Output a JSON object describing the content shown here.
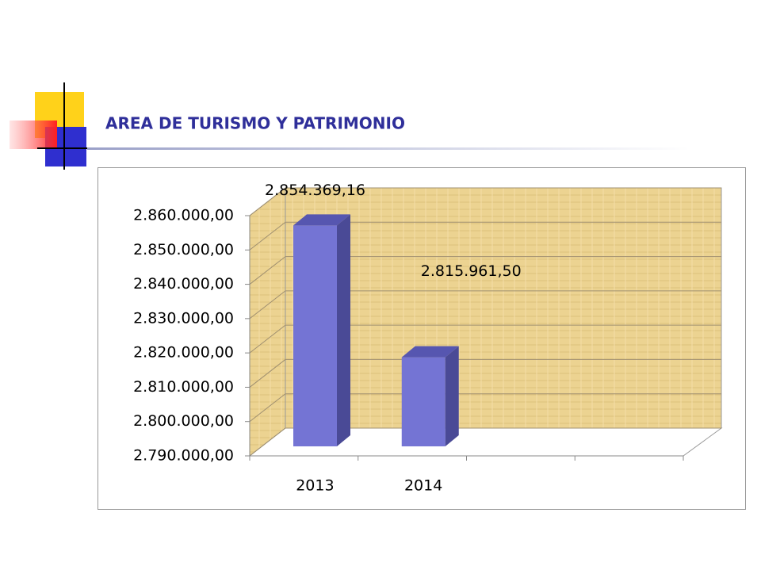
{
  "chart_data": {
    "type": "bar3d",
    "title": "AREA DE TURISMO Y PATRIMONIO",
    "categories": [
      "2013",
      "2014",
      null,
      null
    ],
    "values": [
      2854369.16,
      2815961.5,
      null,
      null
    ],
    "value_labels": [
      "2.854.369,16",
      "2.815.961,50",
      null,
      null
    ],
    "color": "#7474d4",
    "ylim": [
      2790000,
      2860000
    ],
    "yticks": [
      {
        "value": 2790000,
        "label": "2.790.000,00"
      },
      {
        "value": 2800000,
        "label": "2.800.000,00"
      },
      {
        "value": 2810000,
        "label": "2.810.000,00"
      },
      {
        "value": 2820000,
        "label": "2.820.000,00"
      },
      {
        "value": 2830000,
        "label": "2.830.000,00"
      },
      {
        "value": 2840000,
        "label": "2.840.000,00"
      },
      {
        "value": 2850000,
        "label": "2.850.000,00"
      },
      {
        "value": 2860000,
        "label": "2.860.000,00"
      }
    ],
    "grid": true
  }
}
